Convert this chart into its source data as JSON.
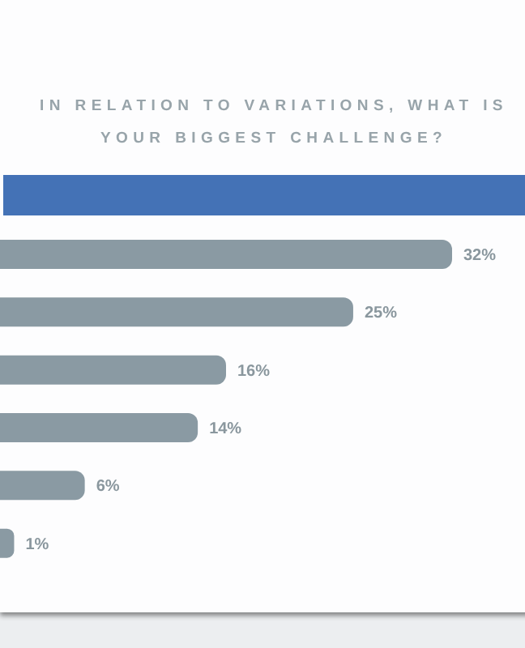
{
  "chart_data": {
    "type": "bar",
    "orientation": "horizontal",
    "title": "IN RELATION TO VARIATIONS, WHAT IS YOUR BIGGEST CHALLENGE?",
    "categories": [
      null,
      null,
      null,
      null,
      null,
      null
    ],
    "values": [
      32,
      25,
      16,
      14,
      6,
      1
    ],
    "value_labels": [
      "32%",
      "25%",
      "16%",
      "14%",
      "6%",
      "1%"
    ],
    "color": "#8a9aa3"
  }
}
